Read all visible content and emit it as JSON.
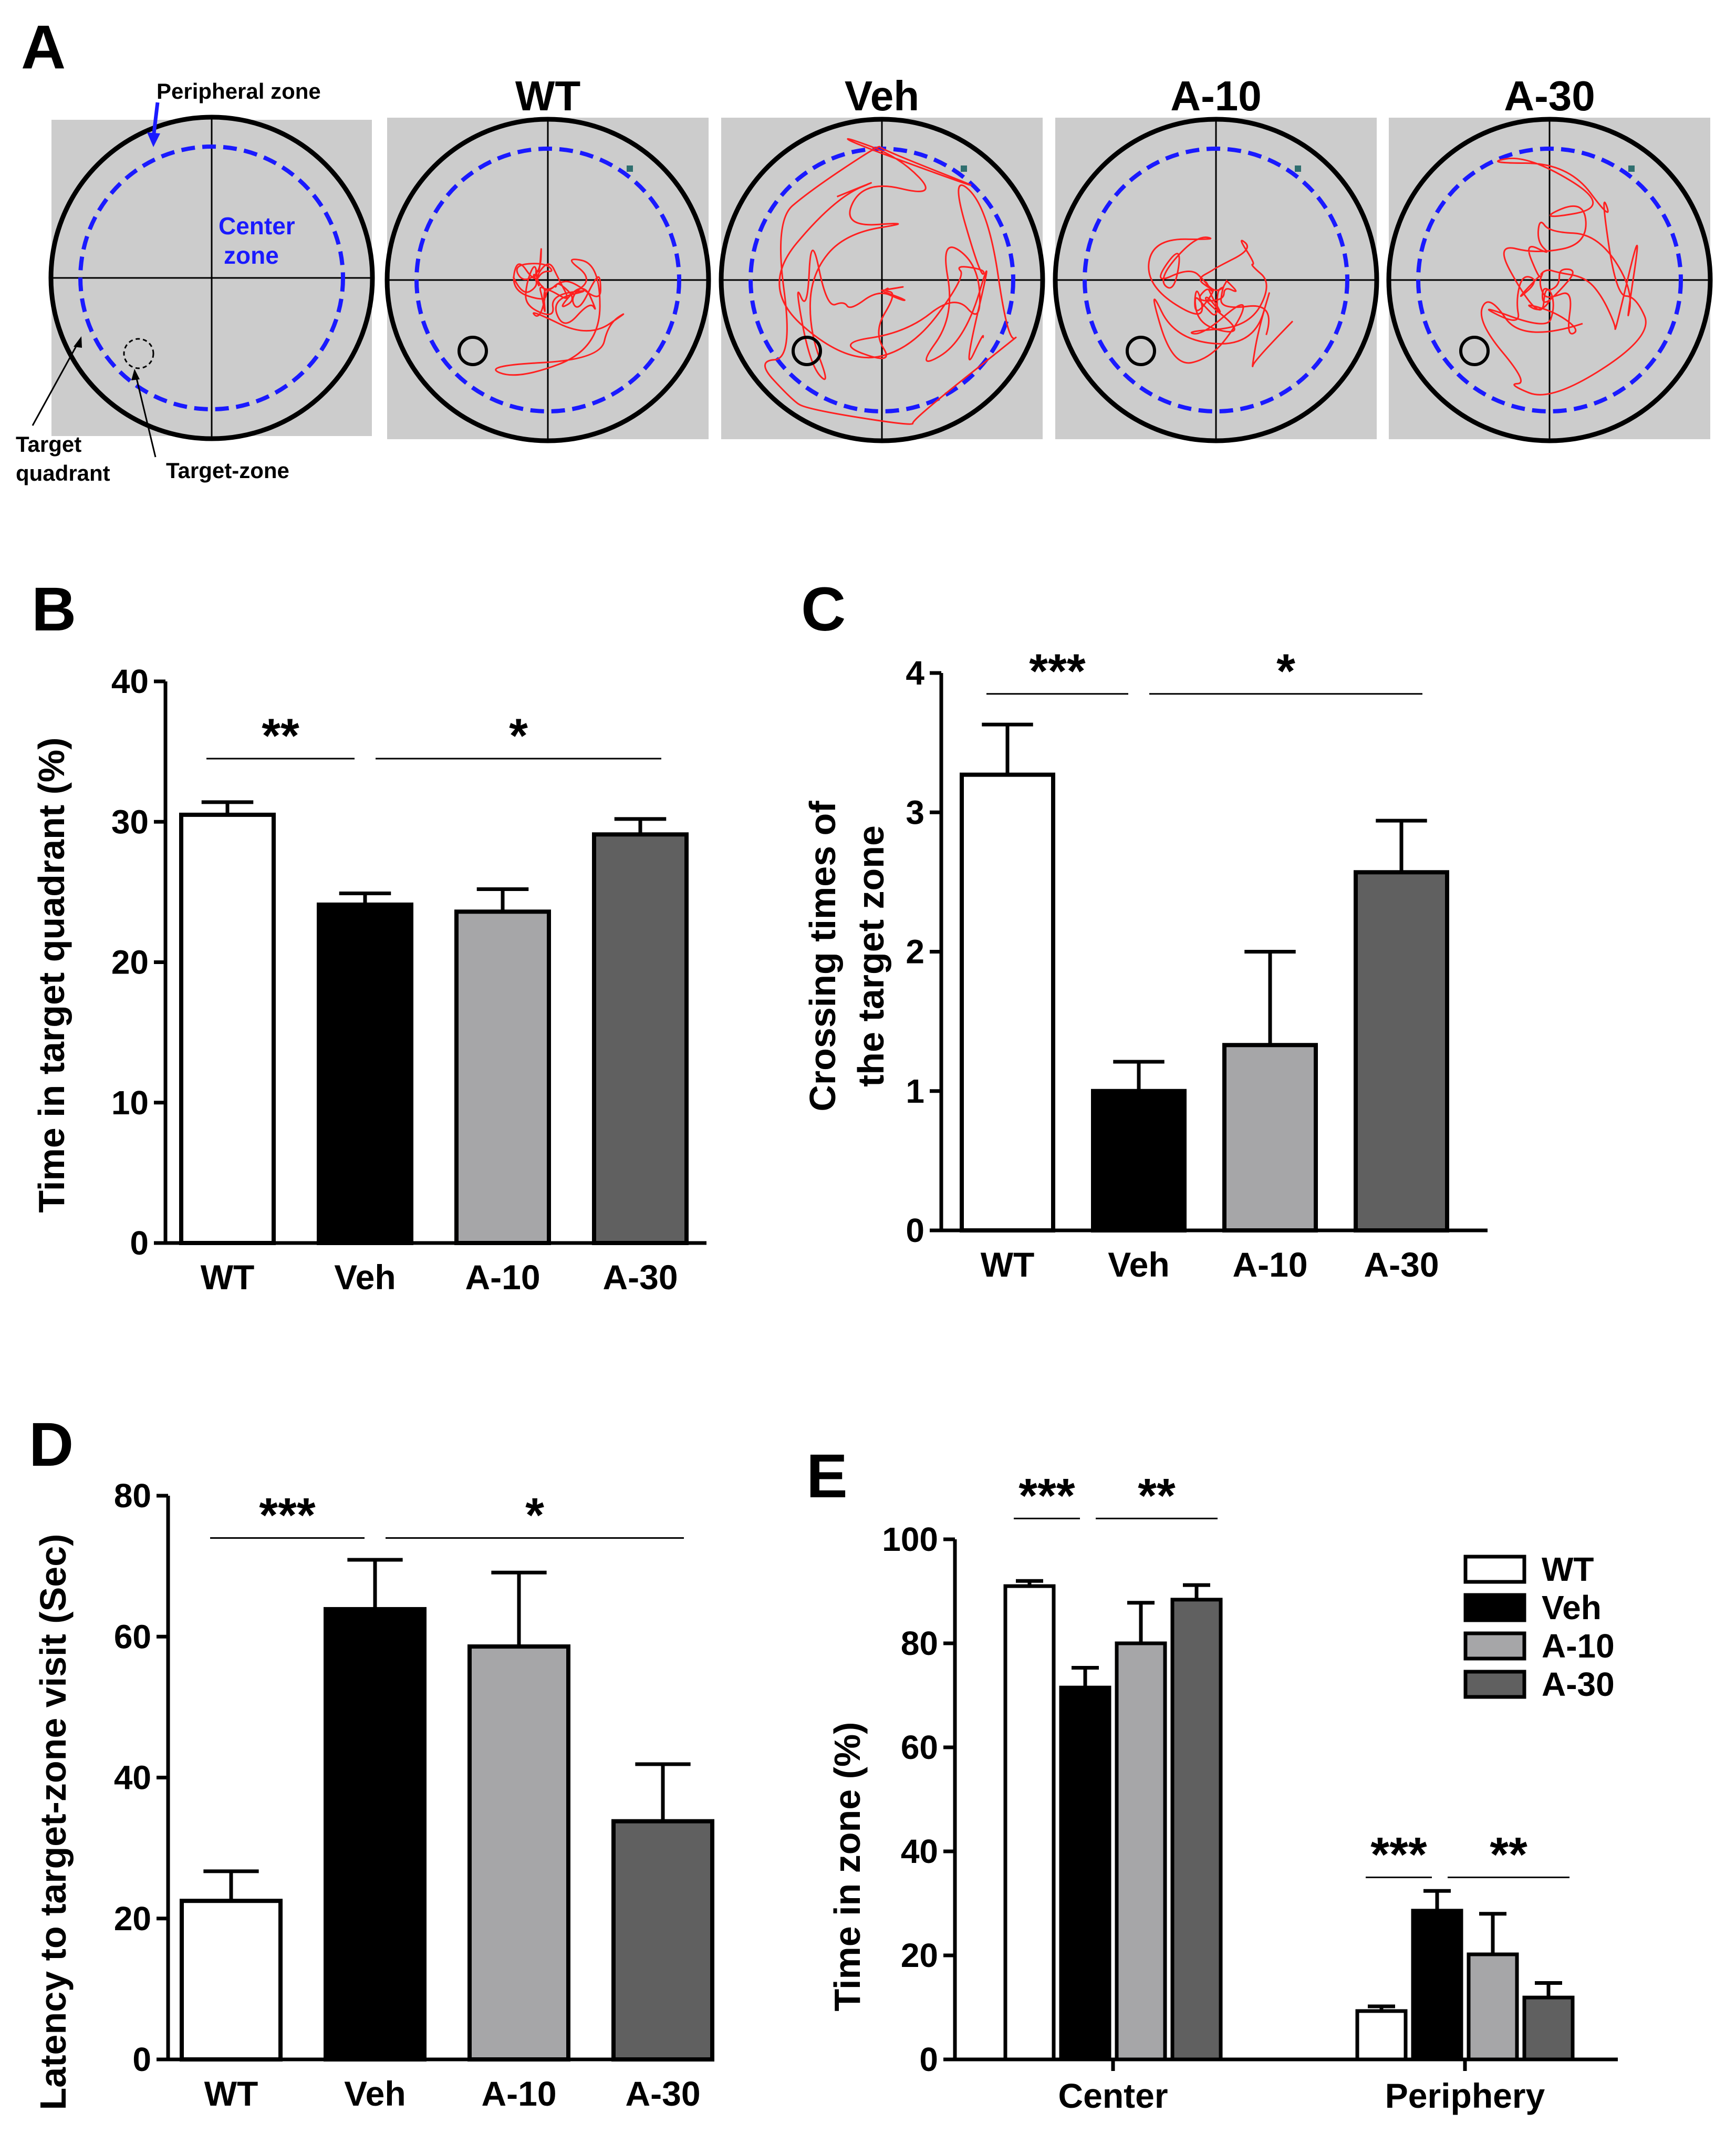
{
  "panels": {
    "A": {
      "label": "A",
      "titles": [
        "WT",
        "Veh",
        "A-10",
        "A-30"
      ],
      "annotations": {
        "peripheral_zone": "Peripheral zone",
        "center_1": "Center",
        "center_2": "zone",
        "target_quadrant_1": "Target",
        "target_quadrant_2": "quadrant",
        "target_zone": "Target-zone"
      }
    },
    "B": {
      "label": "B",
      "ylabel": "Time in target quadrant (%)",
      "sig": [
        "**",
        "*"
      ]
    },
    "C": {
      "label": "C",
      "ylabel_1": "Crossing times of",
      "ylabel_2": "the target zone",
      "sig": [
        "***",
        "*"
      ]
    },
    "D": {
      "label": "D",
      "ylabel": "Latency to target-zone visit (Sec)",
      "sig": [
        "***",
        "*"
      ]
    },
    "E": {
      "label": "E",
      "ylabel": "Time in zone (%)",
      "sig": [
        "***",
        "**",
        "***",
        "**"
      ],
      "legend": [
        "WT",
        "Veh",
        "A-10",
        "A-30"
      ]
    }
  },
  "colors": {
    "WT": "#ffffff",
    "Veh": "#000000",
    "A-10": "#a6a6a8",
    "A-30": "#606060",
    "path": "#ff2020",
    "zone": "#1a1aff",
    "pool_bg": "#cccccc"
  },
  "chart_data": [
    {
      "id": "B",
      "type": "bar",
      "categories": [
        "WT",
        "Veh",
        "A-10",
        "A-30"
      ],
      "values": [
        30.5,
        24.1,
        23.6,
        29.1
      ],
      "errors": [
        0.9,
        0.8,
        1.6,
        1.1
      ],
      "ylabel": "Time in target quadrant (%)",
      "ylim": [
        0,
        40
      ],
      "yticks": [
        0,
        10,
        20,
        30,
        40
      ],
      "significance": [
        {
          "from": 0,
          "to": 1,
          "label": "**",
          "y": 34.5
        },
        {
          "from": 1,
          "to": 3,
          "label": "*",
          "y": 34.5
        }
      ]
    },
    {
      "id": "C",
      "type": "bar",
      "categories": [
        "WT",
        "Veh",
        "A-10",
        "A-30"
      ],
      "values": [
        3.27,
        1.0,
        1.33,
        2.57
      ],
      "errors": [
        0.36,
        0.21,
        0.67,
        0.37
      ],
      "ylabel": "Crossing times of the target zone",
      "ylim": [
        0,
        4
      ],
      "yticks": [
        0,
        1,
        2,
        3,
        4
      ],
      "significance": [
        {
          "from": 0,
          "to": 1,
          "label": "***",
          "y": 3.85
        },
        {
          "from": 1,
          "to": 3,
          "label": "*",
          "y": 3.85
        }
      ]
    },
    {
      "id": "D",
      "type": "bar",
      "categories": [
        "WT",
        "Veh",
        "A-10",
        "A-30"
      ],
      "values": [
        22.5,
        63.9,
        58.6,
        33.8
      ],
      "errors": [
        4.2,
        7.0,
        10.5,
        8.1
      ],
      "ylabel": "Latency to target-zone visit (Sec)",
      "ylim": [
        0,
        80
      ],
      "yticks": [
        0,
        20,
        40,
        60,
        80
      ],
      "significance": [
        {
          "from": 0,
          "to": 1,
          "label": "***",
          "y": 74
        },
        {
          "from": 1,
          "to": 3,
          "label": "*",
          "y": 74
        }
      ]
    },
    {
      "id": "E",
      "type": "bar",
      "categories": [
        "Center",
        "Periphery"
      ],
      "series": [
        {
          "name": "WT",
          "values": [
            91.0,
            9.3
          ],
          "errors": [
            1.0,
            0.9
          ]
        },
        {
          "name": "Veh",
          "values": [
            71.5,
            28.6
          ],
          "errors": [
            3.8,
            3.8
          ]
        },
        {
          "name": "A-10",
          "values": [
            80.0,
            20.2
          ],
          "errors": [
            7.8,
            7.8
          ]
        },
        {
          "name": "A-30",
          "values": [
            88.4,
            11.9
          ],
          "errors": [
            2.8,
            2.8
          ]
        }
      ],
      "ylabel": "Time in zone (%)",
      "ylim": [
        0,
        100
      ],
      "yticks": [
        0,
        20,
        40,
        60,
        80,
        100
      ],
      "legend_position": "top-right",
      "significance": [
        {
          "group": 0,
          "from": 0,
          "to": 1,
          "label": "***",
          "y": 104
        },
        {
          "group": 0,
          "from": 1,
          "to": 3,
          "label": "**",
          "y": 104
        },
        {
          "group": 1,
          "from": 0,
          "to": 1,
          "label": "***",
          "y": 35
        },
        {
          "group": 1,
          "from": 1,
          "to": 3,
          "label": "**",
          "y": 35
        }
      ]
    }
  ]
}
